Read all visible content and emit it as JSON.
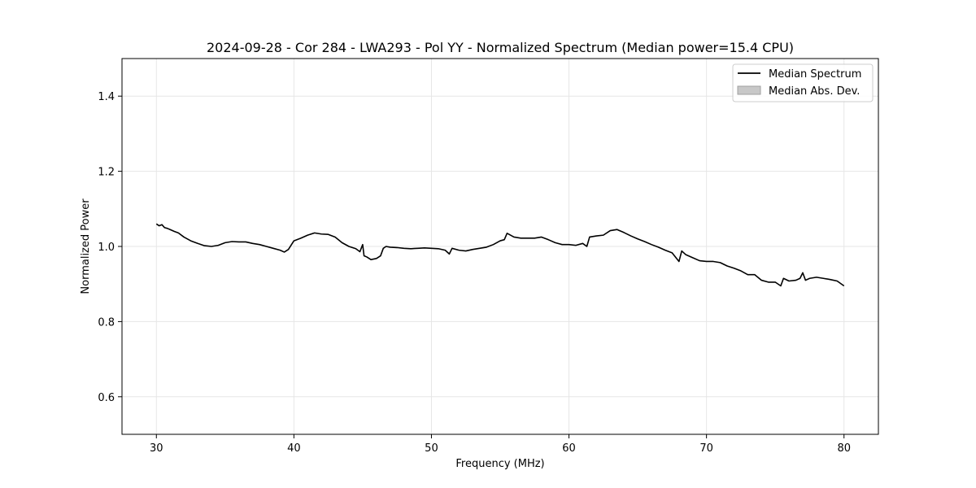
{
  "chart_data": {
    "type": "line",
    "title": "2024-09-28 - Cor 284 - LWA293 - Pol YY - Normalized Spectrum (Median power=15.4 CPU)",
    "xlabel": "Frequency (MHz)",
    "ylabel": "Normalized Power",
    "xlim": [
      27.5,
      82.5
    ],
    "ylim": [
      0.5,
      1.5
    ],
    "xticks": [
      30,
      40,
      50,
      60,
      70,
      80
    ],
    "yticks": [
      0.6,
      0.8,
      1.0,
      1.2,
      1.4
    ],
    "xtick_labels": [
      "30",
      "40",
      "50",
      "60",
      "70",
      "80"
    ],
    "ytick_labels": [
      "0.6",
      "0.8",
      "1.0",
      "1.2",
      "1.4"
    ],
    "grid": true,
    "legend_position": "top-right",
    "colors": {
      "line": "#000000",
      "band": "#c8c8c8"
    },
    "series": [
      {
        "name": "Median Spectrum",
        "x": [
          30.0,
          30.2,
          30.4,
          30.6,
          30.8,
          31.0,
          31.3,
          31.6,
          32.0,
          32.5,
          33.0,
          33.5,
          34.0,
          34.5,
          35.0,
          35.5,
          36.0,
          36.5,
          37.0,
          37.5,
          38.0,
          38.5,
          39.0,
          39.3,
          39.6,
          40.0,
          40.5,
          41.0,
          41.5,
          42.0,
          42.5,
          43.0,
          43.5,
          44.0,
          44.5,
          44.8,
          45.0,
          45.1,
          45.3,
          45.6,
          46.0,
          46.3,
          46.5,
          46.7,
          47.0,
          47.5,
          48.0,
          48.5,
          49.0,
          49.5,
          50.0,
          50.5,
          51.0,
          51.3,
          51.5,
          52.0,
          52.5,
          53.0,
          53.5,
          54.0,
          54.5,
          55.0,
          55.3,
          55.5,
          56.0,
          56.5,
          57.0,
          57.5,
          58.0,
          58.5,
          59.0,
          59.5,
          60.0,
          60.5,
          61.0,
          61.3,
          61.5,
          62.0,
          62.5,
          63.0,
          63.5,
          64.0,
          64.5,
          65.0,
          65.5,
          66.0,
          66.5,
          67.0,
          67.5,
          68.0,
          68.2,
          68.5,
          69.0,
          69.5,
          70.0,
          70.5,
          71.0,
          71.5,
          72.0,
          72.5,
          73.0,
          73.5,
          74.0,
          74.5,
          75.0,
          75.4,
          75.6,
          76.0,
          76.5,
          76.8,
          77.0,
          77.2,
          77.5,
          78.0,
          78.5,
          79.0,
          79.5,
          80.0
        ],
        "values": [
          1.06,
          1.055,
          1.058,
          1.05,
          1.048,
          1.045,
          1.04,
          1.036,
          1.025,
          1.015,
          1.008,
          1.002,
          1.0,
          1.003,
          1.01,
          1.013,
          1.012,
          1.012,
          1.008,
          1.005,
          1.0,
          0.995,
          0.99,
          0.985,
          0.992,
          1.015,
          1.022,
          1.03,
          1.036,
          1.033,
          1.032,
          1.025,
          1.01,
          1.0,
          0.994,
          0.986,
          1.005,
          0.975,
          0.972,
          0.965,
          0.968,
          0.975,
          0.995,
          1.0,
          0.998,
          0.997,
          0.995,
          0.994,
          0.995,
          0.996,
          0.995,
          0.994,
          0.99,
          0.98,
          0.995,
          0.99,
          0.988,
          0.992,
          0.995,
          0.998,
          1.005,
          1.015,
          1.018,
          1.035,
          1.025,
          1.022,
          1.022,
          1.022,
          1.025,
          1.018,
          1.01,
          1.005,
          1.005,
          1.003,
          1.008,
          1.0,
          1.025,
          1.028,
          1.03,
          1.042,
          1.045,
          1.037,
          1.028,
          1.02,
          1.013,
          1.005,
          0.998,
          0.99,
          0.983,
          0.96,
          0.988,
          0.978,
          0.97,
          0.962,
          0.96,
          0.96,
          0.957,
          0.948,
          0.942,
          0.935,
          0.925,
          0.925,
          0.91,
          0.905,
          0.905,
          0.895,
          0.915,
          0.908,
          0.91,
          0.915,
          0.93,
          0.91,
          0.915,
          0.918,
          0.915,
          0.912,
          0.908,
          0.895
        ]
      },
      {
        "name": "Median Abs. Dev."
      }
    ]
  }
}
